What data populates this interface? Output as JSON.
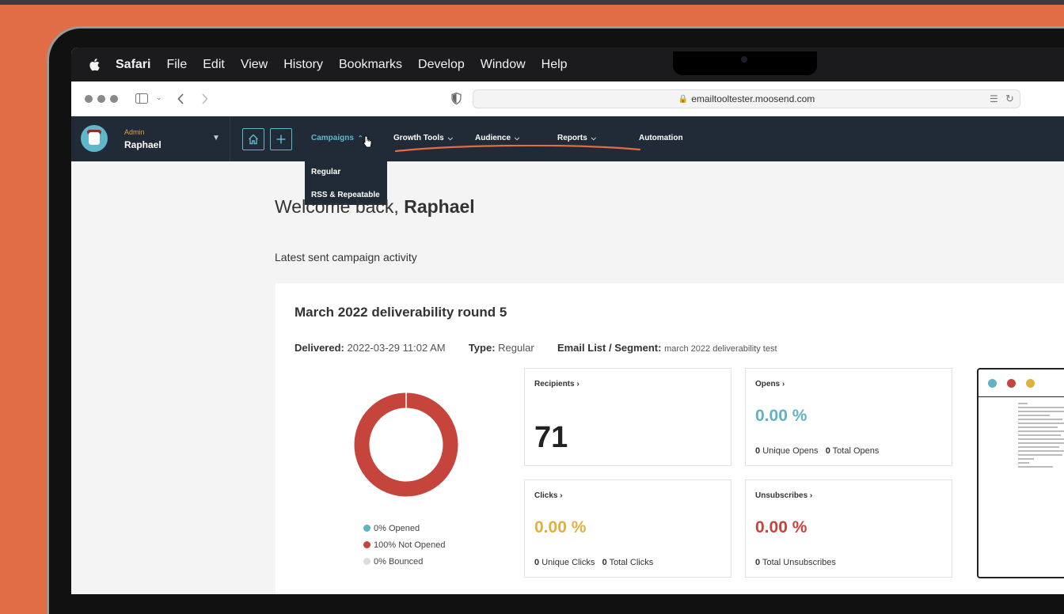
{
  "menubar": {
    "items": [
      "Safari",
      "File",
      "Edit",
      "View",
      "History",
      "Bookmarks",
      "Develop",
      "Window",
      "Help"
    ]
  },
  "browser": {
    "url": "emailtooltester.moosend.com"
  },
  "appnav": {
    "user_role": "Admin",
    "user_name": "Raphael",
    "items": [
      "Campaigns",
      "Growth Tools",
      "Audience",
      "Reports",
      "Automation"
    ],
    "active_item": "Campaigns"
  },
  "dropdown": {
    "items": [
      "Regular",
      "RSS & Repeatable"
    ]
  },
  "main": {
    "welcome_prefix": "Welcome back,",
    "welcome_name": "Raphael",
    "section_title": "Latest sent campaign activity"
  },
  "campaign": {
    "title": "March 2022 deliverability round 5",
    "delivered_label": "Delivered:",
    "delivered_value": "2022-03-29 11:02 AM",
    "type_label": "Type:",
    "type_value": "Regular",
    "list_label": "Email List / Segment:",
    "list_value": "march 2022 deliverability test"
  },
  "legend": [
    {
      "label": "0% Opened",
      "color": "#5fb3c3"
    },
    {
      "label": "100% Not Opened",
      "color": "#c5443b"
    },
    {
      "label": "0% Bounced",
      "color": "#dddddd"
    }
  ],
  "stats": {
    "recipients": {
      "label": "Recipients",
      "value": "71"
    },
    "opens": {
      "label": "Opens",
      "value": "0.00 %",
      "unique_count": "0",
      "unique_label": "Unique Opens",
      "total_count": "0",
      "total_label": "Total Opens",
      "color": "#5fb3c3"
    },
    "clicks": {
      "label": "Clicks",
      "value": "0.00 %",
      "unique_count": "0",
      "unique_label": "Unique Clicks",
      "total_count": "0",
      "total_label": "Total Clicks",
      "color": "#e0b23d"
    },
    "unsubscribes": {
      "label": "Unsubscribes",
      "value": "0.00 %",
      "total_count": "0",
      "total_label": "Total Unsubscribes",
      "color": "#c5443b"
    }
  },
  "preview_dots": [
    "#5fb3c3",
    "#c5443b",
    "#e0b23d"
  ],
  "chart_data": {
    "type": "pie",
    "categories": [
      "Opened",
      "Not Opened",
      "Bounced"
    ],
    "values": [
      0,
      100,
      0
    ],
    "colors": [
      "#5fb3c3",
      "#c5443b",
      "#dddddd"
    ]
  }
}
